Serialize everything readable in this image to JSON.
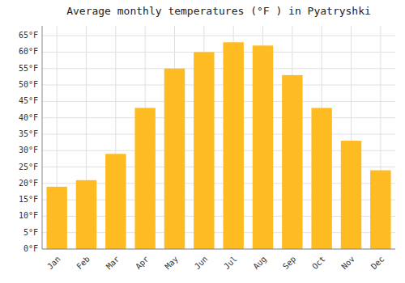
{
  "chart_data": {
    "type": "bar",
    "title": "Average monthly temperatures (°F ) in Pyatryshki",
    "categories": [
      "Jan",
      "Feb",
      "Mar",
      "Apr",
      "May",
      "Jun",
      "Jul",
      "Aug",
      "Sep",
      "Oct",
      "Nov",
      "Dec"
    ],
    "values": [
      19,
      21,
      29,
      43,
      55,
      60,
      63,
      62,
      53,
      43,
      33,
      24
    ],
    "color": "#FFBB22",
    "ylim": [
      0,
      68
    ],
    "yticks": [
      {
        "value": 0,
        "label": "0°F"
      },
      {
        "value": 5,
        "label": "5°F"
      },
      {
        "value": 10,
        "label": "10°F"
      },
      {
        "value": 15,
        "label": "15°F"
      },
      {
        "value": 20,
        "label": "20°F"
      },
      {
        "value": 25,
        "label": "25°F"
      },
      {
        "value": 30,
        "label": "30°F"
      },
      {
        "value": 35,
        "label": "35°F"
      },
      {
        "value": 40,
        "label": "40°F"
      },
      {
        "value": 45,
        "label": "45°F"
      },
      {
        "value": 50,
        "label": "50°F"
      },
      {
        "value": 55,
        "label": "55°F"
      },
      {
        "value": 60,
        "label": "60°F"
      },
      {
        "value": 65,
        "label": "65°F"
      }
    ],
    "grid": true
  }
}
